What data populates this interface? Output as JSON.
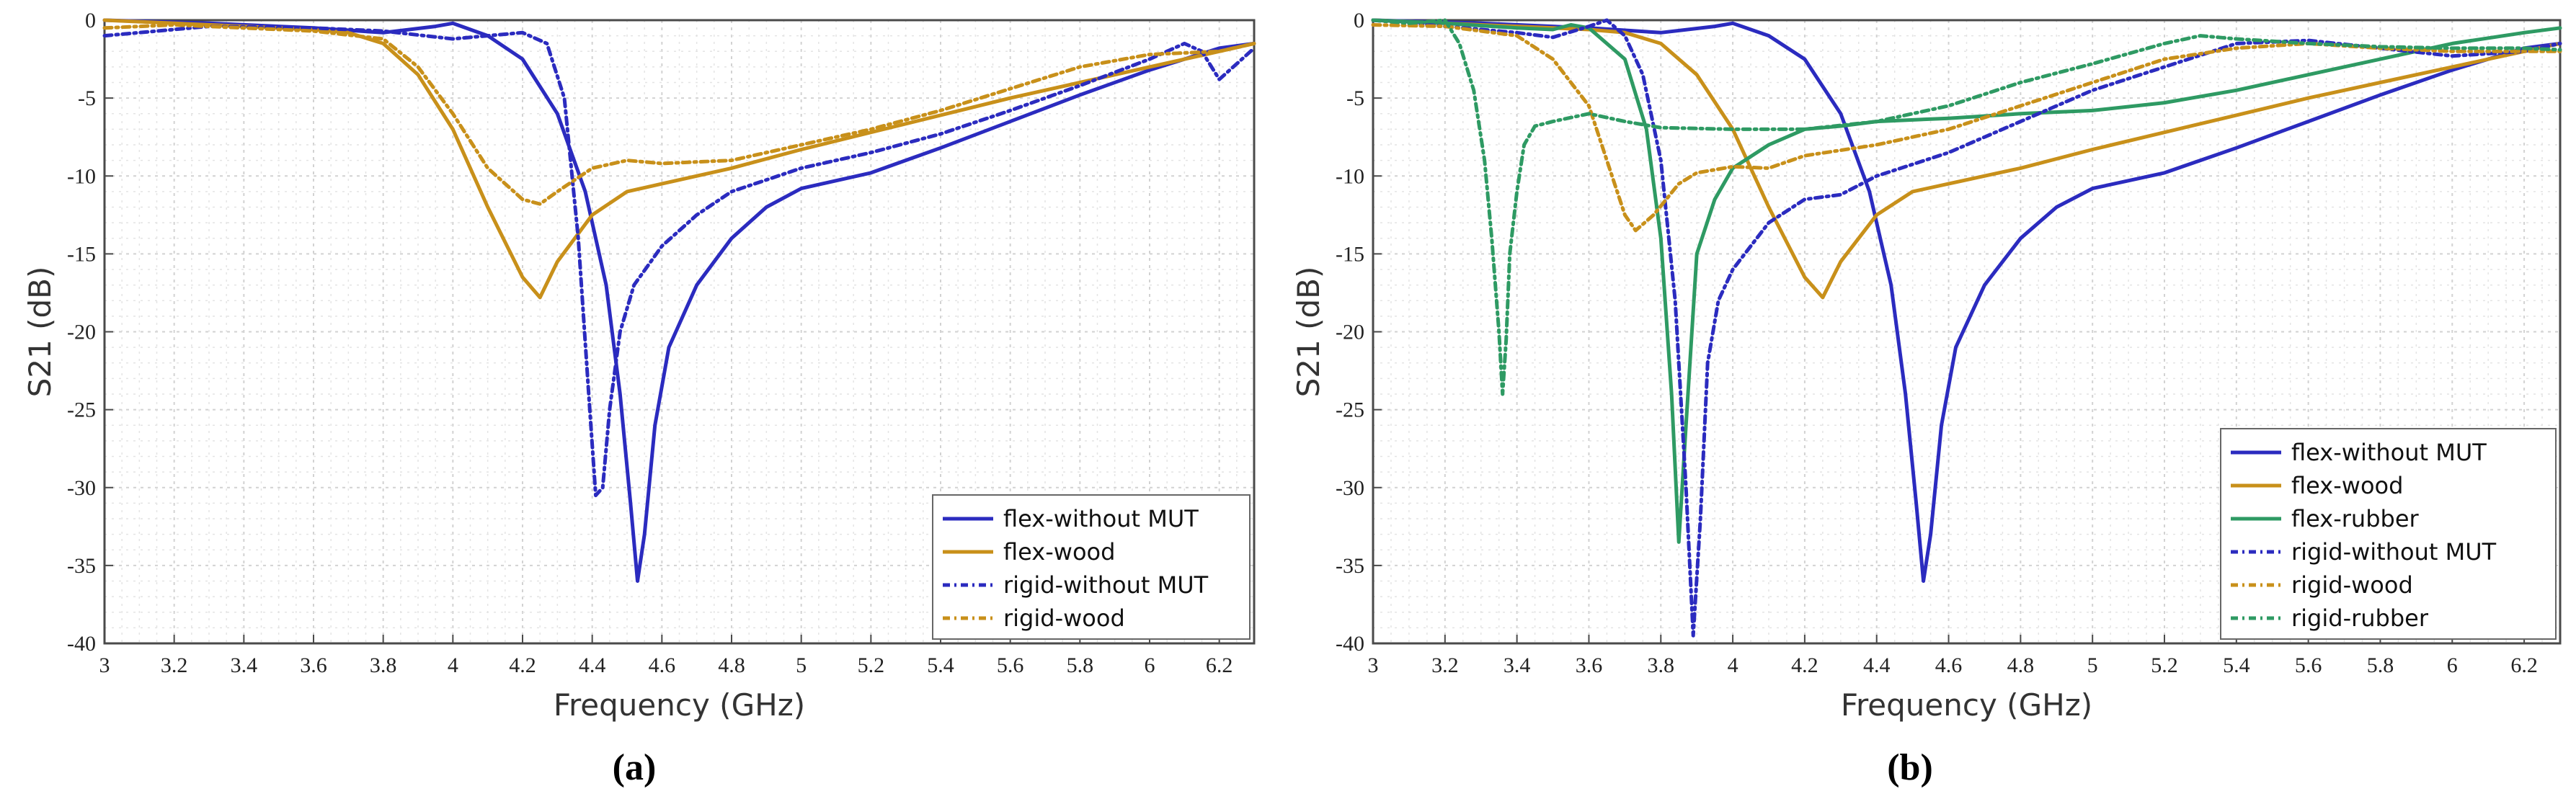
{
  "chart_data": [
    {
      "panel": "a",
      "caption": "(a)",
      "type": "line",
      "xlabel": "Frequency (GHz)",
      "ylabel": "S21 (dB)",
      "xlim": [
        3,
        6.3
      ],
      "ylim": [
        -40,
        0
      ],
      "xticks": [
        3,
        3.2,
        3.4,
        3.6,
        3.8,
        4,
        4.2,
        4.4,
        4.6,
        4.8,
        5,
        5.2,
        5.4,
        5.6,
        5.8,
        6,
        6.2
      ],
      "xtick_labels": [
        "3",
        "3.2",
        "3.4",
        "3.6",
        "3.8",
        "4",
        "4.2",
        "4.4",
        "4.6",
        "4.8",
        "5",
        "5.2",
        "5.4",
        "5.6",
        "5.8",
        "6",
        "6.2"
      ],
      "yticks": [
        0,
        -5,
        -10,
        -15,
        -20,
        -25,
        -30,
        -35,
        -40
      ],
      "ytick_labels": [
        "0",
        "-5",
        "-10",
        "-15",
        "-20",
        "-25",
        "-30",
        "-35",
        "-40"
      ],
      "grid": true,
      "legend_position": "bottom-right",
      "series": [
        {
          "name": "flex-without MUT",
          "color": "#2b2bbf",
          "dash": "solid",
          "x": [
            3,
            3.3,
            3.6,
            3.8,
            3.95,
            4.0,
            4.1,
            4.2,
            4.3,
            4.38,
            4.44,
            4.48,
            4.51,
            4.53,
            4.55,
            4.58,
            4.62,
            4.7,
            4.8,
            4.9,
            5.0,
            5.2,
            5.4,
            5.6,
            5.8,
            6.0,
            6.2,
            6.3
          ],
          "y": [
            0,
            -0.2,
            -0.5,
            -0.8,
            -0.4,
            -0.2,
            -1.0,
            -2.5,
            -6,
            -11,
            -17,
            -24,
            -31,
            -36,
            -33,
            -26,
            -21,
            -17,
            -14,
            -12,
            -10.8,
            -9.8,
            -8.2,
            -6.5,
            -4.8,
            -3.2,
            -1.8,
            -1.5
          ]
        },
        {
          "name": "flex-wood",
          "color": "#c8901a",
          "dash": "solid",
          "x": [
            3,
            3.2,
            3.4,
            3.6,
            3.7,
            3.8,
            3.9,
            4.0,
            4.1,
            4.2,
            4.25,
            4.3,
            4.4,
            4.5,
            4.6,
            4.8,
            5.0,
            5.2,
            5.4,
            5.6,
            5.8,
            6.0,
            6.2,
            6.3
          ],
          "y": [
            0,
            -0.2,
            -0.4,
            -0.6,
            -0.8,
            -1.5,
            -3.5,
            -7,
            -12,
            -16.5,
            -17.8,
            -15.5,
            -12.5,
            -11,
            -10.5,
            -9.5,
            -8.3,
            -7.2,
            -6.1,
            -5.0,
            -4.0,
            -3.0,
            -2.0,
            -1.5
          ]
        },
        {
          "name": "rigid-without MUT",
          "color": "#2b2bbf",
          "dash": "10 6 3 6",
          "x": [
            3,
            3.3,
            3.6,
            3.8,
            4.0,
            4.1,
            4.2,
            4.27,
            4.32,
            4.36,
            4.39,
            4.41,
            4.43,
            4.45,
            4.48,
            4.52,
            4.6,
            4.7,
            4.8,
            5.0,
            5.2,
            5.4,
            5.6,
            5.8,
            6.0,
            6.1,
            6.15,
            6.2,
            6.3
          ],
          "y": [
            -1,
            -0.4,
            -0.5,
            -0.7,
            -1.2,
            -1.0,
            -0.8,
            -1.5,
            -5,
            -14,
            -24,
            -30.5,
            -30,
            -25,
            -20,
            -17,
            -14.5,
            -12.5,
            -11,
            -9.5,
            -8.5,
            -7.3,
            -5.8,
            -4.2,
            -2.5,
            -1.5,
            -2.0,
            -3.8,
            -1.8
          ]
        },
        {
          "name": "rigid-wood",
          "color": "#c8901a",
          "dash": "10 6 3 6",
          "x": [
            3,
            3.2,
            3.4,
            3.6,
            3.8,
            3.9,
            4.0,
            4.1,
            4.2,
            4.25,
            4.3,
            4.4,
            4.5,
            4.6,
            4.8,
            5.0,
            5.2,
            5.4,
            5.6,
            5.8,
            6.0,
            6.2,
            6.3
          ],
          "y": [
            -0.5,
            -0.3,
            -0.5,
            -0.7,
            -1.2,
            -3,
            -6,
            -9.5,
            -11.5,
            -11.8,
            -11,
            -9.5,
            -9.0,
            -9.2,
            -9.0,
            -8.0,
            -7.0,
            -5.8,
            -4.4,
            -3.0,
            -2.2,
            -2.0,
            -1.5
          ]
        }
      ]
    },
    {
      "panel": "b",
      "caption": "(b)",
      "type": "line",
      "xlabel": "Frequency (GHz)",
      "ylabel": "S21 (dB)",
      "xlim": [
        3,
        6.3
      ],
      "ylim": [
        -40,
        0
      ],
      "xticks": [
        3,
        3.2,
        3.4,
        3.6,
        3.8,
        4,
        4.2,
        4.4,
        4.6,
        4.8,
        5,
        5.2,
        5.4,
        5.6,
        5.8,
        6,
        6.2
      ],
      "xtick_labels": [
        "3",
        "3.2",
        "3.4",
        "3.6",
        "3.8",
        "4",
        "4.2",
        "4.4",
        "4.6",
        "4.8",
        "5",
        "5.2",
        "5.4",
        "5.6",
        "5.8",
        "6",
        "6.2"
      ],
      "yticks": [
        0,
        -5,
        -10,
        -15,
        -20,
        -25,
        -30,
        -35,
        -40
      ],
      "ytick_labels": [
        "0",
        "-5",
        "-10",
        "-15",
        "-20",
        "-25",
        "-30",
        "-35",
        "-40"
      ],
      "grid": true,
      "legend_position": "bottom-right",
      "series": [
        {
          "name": "flex-without MUT",
          "color": "#2b2bbf",
          "dash": "solid",
          "x": [
            3,
            3.3,
            3.6,
            3.8,
            3.95,
            4.0,
            4.1,
            4.2,
            4.3,
            4.38,
            4.44,
            4.48,
            4.51,
            4.53,
            4.55,
            4.58,
            4.62,
            4.7,
            4.8,
            4.9,
            5.0,
            5.2,
            5.4,
            5.6,
            5.8,
            6.0,
            6.2,
            6.3
          ],
          "y": [
            0,
            -0.2,
            -0.5,
            -0.8,
            -0.4,
            -0.2,
            -1.0,
            -2.5,
            -6,
            -11,
            -17,
            -24,
            -31,
            -36,
            -33,
            -26,
            -21,
            -17,
            -14,
            -12,
            -10.8,
            -9.8,
            -8.2,
            -6.5,
            -4.8,
            -3.2,
            -1.8,
            -1.5
          ]
        },
        {
          "name": "flex-wood",
          "color": "#c8901a",
          "dash": "solid",
          "x": [
            3,
            3.2,
            3.4,
            3.6,
            3.7,
            3.8,
            3.9,
            4.0,
            4.1,
            4.2,
            4.25,
            4.3,
            4.4,
            4.5,
            4.6,
            4.8,
            5.0,
            5.2,
            5.4,
            5.6,
            5.8,
            6.0,
            6.2,
            6.3
          ],
          "y": [
            0,
            -0.2,
            -0.4,
            -0.6,
            -0.8,
            -1.5,
            -3.5,
            -7,
            -12,
            -16.5,
            -17.8,
            -15.5,
            -12.5,
            -11,
            -10.5,
            -9.5,
            -8.3,
            -7.2,
            -6.1,
            -5.0,
            -4.0,
            -3.0,
            -2.0,
            -1.5
          ]
        },
        {
          "name": "flex-rubber",
          "color": "#2e9a63",
          "dash": "solid",
          "x": [
            3,
            3.2,
            3.4,
            3.5,
            3.55,
            3.6,
            3.7,
            3.76,
            3.8,
            3.83,
            3.85,
            3.87,
            3.9,
            3.95,
            4.0,
            4.1,
            4.2,
            4.3,
            4.4,
            4.6,
            4.8,
            5.0,
            5.2,
            5.4,
            5.6,
            5.8,
            6.0,
            6.2,
            6.3
          ],
          "y": [
            0,
            -0.2,
            -0.5,
            -0.6,
            -0.3,
            -0.5,
            -2.5,
            -7,
            -14,
            -24,
            -33.5,
            -26,
            -15,
            -11.5,
            -9.5,
            -8,
            -7,
            -6.8,
            -6.5,
            -6.3,
            -6.0,
            -5.8,
            -5.3,
            -4.5,
            -3.5,
            -2.5,
            -1.5,
            -0.8,
            -0.5
          ]
        },
        {
          "name": "rigid-without MUT",
          "color": "#2b2bbf",
          "dash": "10 6 3 6",
          "x": [
            3,
            3.2,
            3.4,
            3.5,
            3.6,
            3.65,
            3.7,
            3.75,
            3.8,
            3.84,
            3.87,
            3.89,
            3.91,
            3.93,
            3.96,
            4.0,
            4.1,
            4.2,
            4.3,
            4.4,
            4.6,
            4.8,
            5.0,
            5.2,
            5.4,
            5.6,
            5.8,
            6.0,
            6.2,
            6.3
          ],
          "y": [
            0,
            -0.4,
            -0.8,
            -1.1,
            -0.4,
            0,
            -1.0,
            -3.5,
            -9,
            -18,
            -30,
            -39.5,
            -32,
            -22,
            -18,
            -16,
            -13,
            -11.5,
            -11.2,
            -10,
            -8.5,
            -6.5,
            -4.5,
            -3.0,
            -1.5,
            -1.3,
            -1.8,
            -2.3,
            -2.0,
            -1.5
          ]
        },
        {
          "name": "rigid-wood",
          "color": "#c8901a",
          "dash": "10 6 3 6",
          "x": [
            3,
            3.2,
            3.4,
            3.5,
            3.6,
            3.65,
            3.7,
            3.73,
            3.78,
            3.85,
            3.9,
            4.0,
            4.1,
            4.2,
            4.4,
            4.6,
            4.8,
            5.0,
            5.2,
            5.4,
            5.6,
            5.8,
            6.0,
            6.2,
            6.3
          ],
          "y": [
            -0.3,
            -0.4,
            -1.0,
            -2.5,
            -5.5,
            -9,
            -12.5,
            -13.5,
            -12.5,
            -10.5,
            -9.8,
            -9.4,
            -9.5,
            -8.7,
            -8.0,
            -7.0,
            -5.5,
            -4.0,
            -2.5,
            -1.8,
            -1.5,
            -1.8,
            -2.0,
            -2.0,
            -2.0
          ]
        },
        {
          "name": "rigid-rubber",
          "color": "#2e9a63",
          "dash": "10 6 3 6",
          "x": [
            3,
            3.1,
            3.2,
            3.24,
            3.28,
            3.31,
            3.33,
            3.35,
            3.36,
            3.37,
            3.38,
            3.4,
            3.42,
            3.45,
            3.5,
            3.6,
            3.7,
            3.8,
            4.0,
            4.2,
            4.4,
            4.6,
            4.8,
            5.0,
            5.2,
            5.3,
            5.4,
            5.6,
            5.8,
            6.0,
            6.2,
            6.3
          ],
          "y": [
            0,
            -0.2,
            0,
            -1.5,
            -4.5,
            -9,
            -14,
            -20,
            -24,
            -20.5,
            -15,
            -11,
            -8,
            -6.8,
            -6.5,
            -6,
            -6.5,
            -6.9,
            -7.0,
            -7.0,
            -6.5,
            -5.5,
            -4.0,
            -2.8,
            -1.5,
            -1.0,
            -1.2,
            -1.5,
            -1.7,
            -1.8,
            -1.8,
            -1.9
          ]
        }
      ]
    }
  ]
}
